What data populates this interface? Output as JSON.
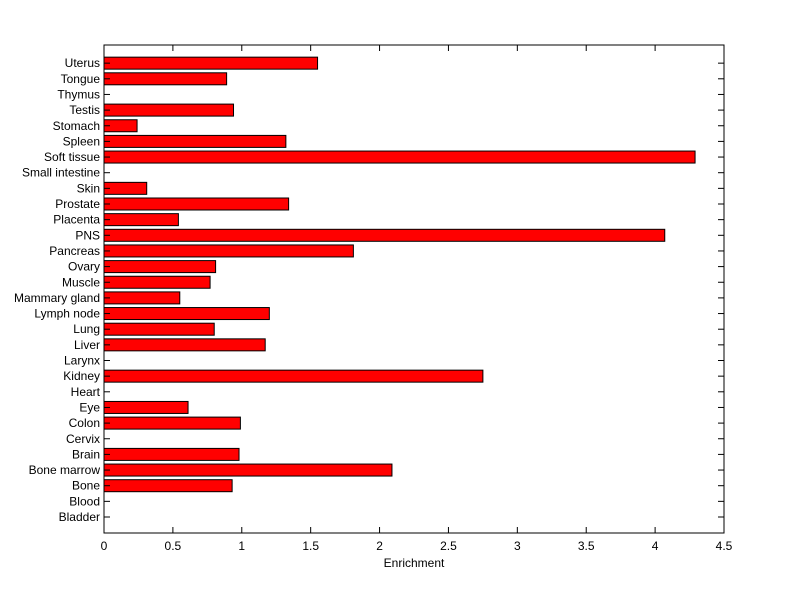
{
  "chart_data": {
    "type": "bar",
    "orientation": "horizontal",
    "xlabel": "Enrichment",
    "ylabel": "",
    "title": "",
    "xlim": [
      0,
      4.5
    ],
    "xticks": [
      "0",
      "0.5",
      "1",
      "1.5",
      "2",
      "2.5",
      "3",
      "3.5",
      "4",
      "4.5"
    ],
    "bar_color": "#ff0000",
    "edge_color": "#000000",
    "grid": false,
    "categories": [
      "Bladder",
      "Blood",
      "Bone",
      "Bone marrow",
      "Brain",
      "Cervix",
      "Colon",
      "Eye",
      "Heart",
      "Kidney",
      "Larynx",
      "Liver",
      "Lung",
      "Lymph node",
      "Mammary gland",
      "Muscle",
      "Ovary",
      "Pancreas",
      "PNS",
      "Placenta",
      "Prostate",
      "Skin",
      "Small intestine",
      "Soft tissue",
      "Spleen",
      "Stomach",
      "Testis",
      "Thymus",
      "Tongue",
      "Uterus"
    ],
    "values": [
      0,
      0,
      0.93,
      2.09,
      0.98,
      0,
      0.99,
      0.61,
      0,
      2.75,
      0,
      1.17,
      0.8,
      1.2,
      0.55,
      0.77,
      0.81,
      1.81,
      4.07,
      0.54,
      1.34,
      0.31,
      0,
      4.29,
      1.32,
      0.24,
      0.94,
      0,
      0.89,
      1.55
    ]
  }
}
